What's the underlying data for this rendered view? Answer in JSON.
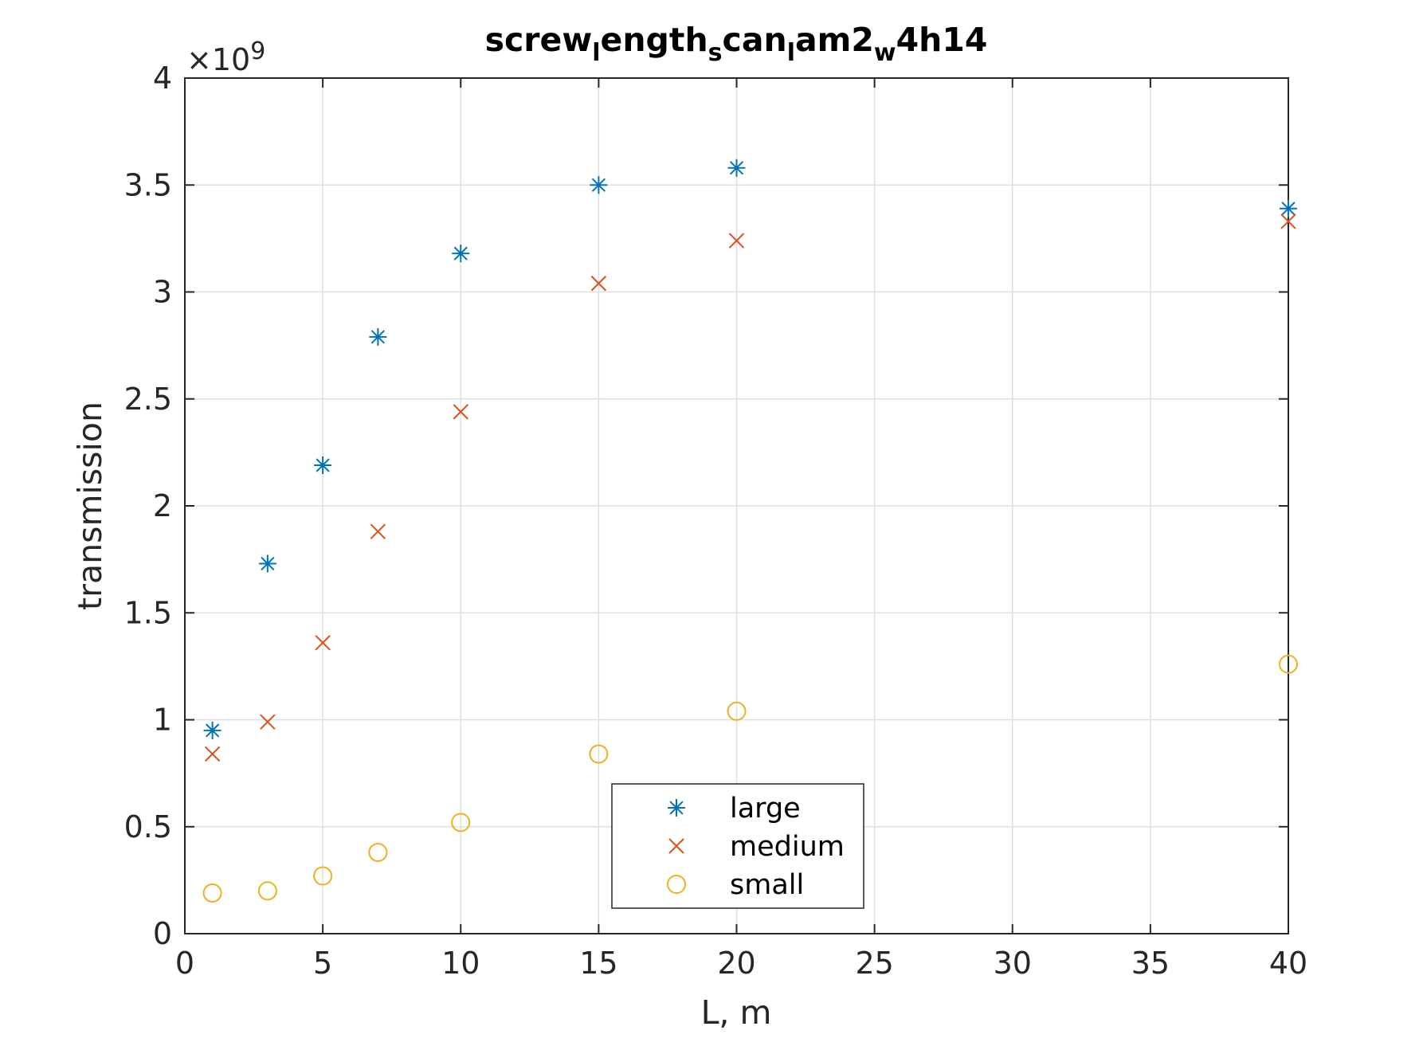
{
  "chart_data": {
    "type": "scatter",
    "title_parts": [
      {
        "text": "screw",
        "sub": false
      },
      {
        "text": "l",
        "sub": true
      },
      {
        "text": "ength",
        "sub": false
      },
      {
        "text": "s",
        "sub": true
      },
      {
        "text": "can",
        "sub": false
      },
      {
        "text": "l",
        "sub": true
      },
      {
        "text": "am2",
        "sub": false
      },
      {
        "text": "w",
        "sub": true
      },
      {
        "text": "4h14",
        "sub": false
      }
    ],
    "xlabel": "L, m",
    "ylabel": "transmission",
    "y_exponent_base": "×10",
    "y_exponent_power": "9",
    "xlim": [
      0,
      40
    ],
    "ylim": [
      0,
      4
    ],
    "xticks": [
      0,
      5,
      10,
      15,
      20,
      25,
      30,
      35,
      40
    ],
    "yticks": [
      0,
      0.5,
      1,
      1.5,
      2,
      2.5,
      3,
      3.5,
      4
    ],
    "ytick_labels": [
      "0",
      "0.5",
      "1",
      "1.5",
      "2",
      "2.5",
      "3",
      "3.5",
      "4"
    ],
    "grid": true,
    "legend_position": "bottom-center",
    "x": [
      1,
      3,
      5,
      7,
      10,
      15,
      20,
      40
    ],
    "series": [
      {
        "name": "large",
        "marker": "asterisk",
        "color": "#0072bd",
        "values": [
          0.95,
          1.73,
          2.19,
          2.79,
          3.18,
          3.5,
          3.58,
          3.39
        ]
      },
      {
        "name": "medium",
        "marker": "x",
        "color": "#d95319",
        "values": [
          0.84,
          0.99,
          1.36,
          1.88,
          2.44,
          3.04,
          3.24,
          3.33
        ]
      },
      {
        "name": "small",
        "marker": "circle",
        "color": "#edb120",
        "values": [
          0.19,
          0.2,
          0.27,
          0.38,
          0.52,
          0.84,
          1.04,
          1.26
        ]
      }
    ]
  }
}
